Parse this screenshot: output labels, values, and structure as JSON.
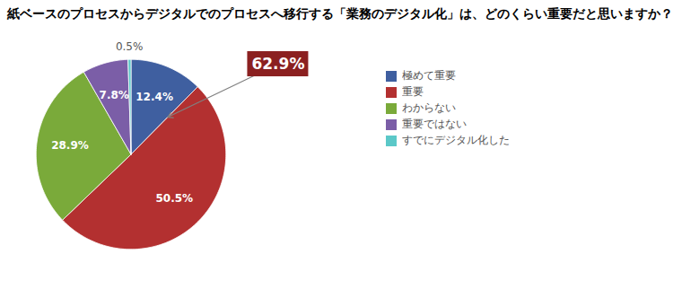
{
  "chart_data": {
    "type": "pie",
    "title": "紙ベースのプロセスからデジタルでのプロセスへ移行する「業務のデジタル化」は、どのくらい重要だと思いますか？",
    "categories": [
      "極めて重要",
      "重要",
      "わからない",
      "重要ではない",
      "すでにデジタル化した"
    ],
    "values": [
      12.4,
      50.5,
      28.9,
      7.8,
      0.5
    ],
    "value_labels": [
      "12.4%",
      "50.5%",
      "28.9%",
      "7.8%",
      "0.5%"
    ],
    "colors": [
      "#3f5fa0",
      "#b33030",
      "#7aaa3a",
      "#7b5ea7",
      "#5bc8c8"
    ],
    "data_labels": true,
    "legend": "right",
    "annotations": [
      {
        "text": "62.9%",
        "color": "#8b2020",
        "text_color": "#ffffff"
      }
    ]
  }
}
